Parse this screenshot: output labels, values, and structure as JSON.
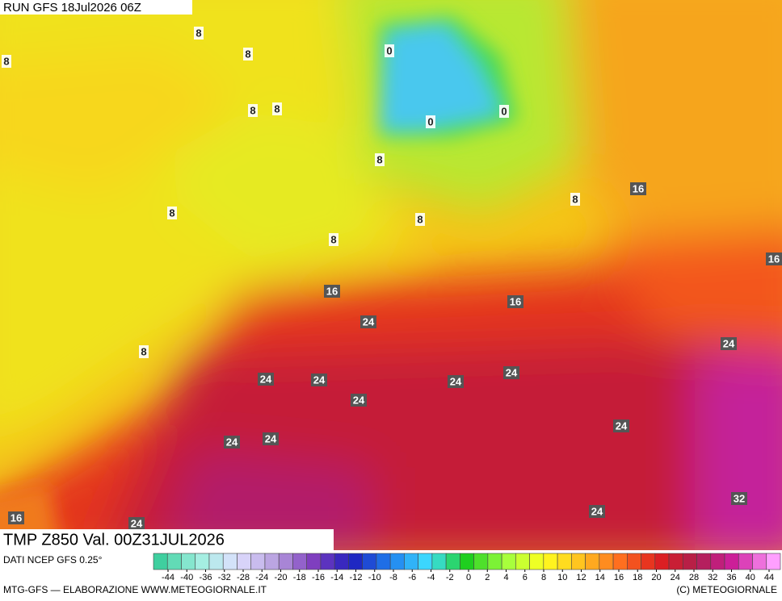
{
  "header": {
    "run": "RUN GFS 18Jul2026 06Z"
  },
  "map": {
    "field_label": "TMP Z850 Val. 00Z31JUL2026",
    "contour_labels": [
      8,
      8,
      8,
      0,
      8,
      8,
      0,
      0,
      8,
      16,
      8,
      8,
      8,
      8,
      16,
      16,
      16,
      24,
      8,
      24,
      24,
      24,
      24,
      24,
      24,
      24,
      24,
      24,
      32,
      16,
      24,
      24
    ]
  },
  "legend": {
    "source": "DATI NCEP GFS 0.25°",
    "ticks": [
      -44,
      -40,
      -36,
      -32,
      -28,
      -24,
      -20,
      -18,
      -16,
      -14,
      -12,
      -10,
      -8,
      -6,
      -4,
      -2,
      0,
      2,
      4,
      6,
      8,
      10,
      12,
      14,
      16,
      18,
      20,
      24,
      28,
      32,
      36,
      40,
      44
    ],
    "colors": [
      "#3fcf9f",
      "#9fefdf",
      "#dfdfff",
      "#b79fdf",
      "#7f3fbf",
      "#1f1fbf",
      "#1f7fef",
      "#3fdfff",
      "#1fcf1f",
      "#9fff3f",
      "#ffff1f",
      "#ffbf1f",
      "#ff6f1f",
      "#df1f1f",
      "#af1f4f",
      "#cf1f9f",
      "#ff9fff"
    ]
  },
  "footer": {
    "credit": "MTG-GFS — ELABORAZIONE WWW.METEOGIORNALE.IT",
    "copyright": "(C) METEOGIORNALE"
  }
}
